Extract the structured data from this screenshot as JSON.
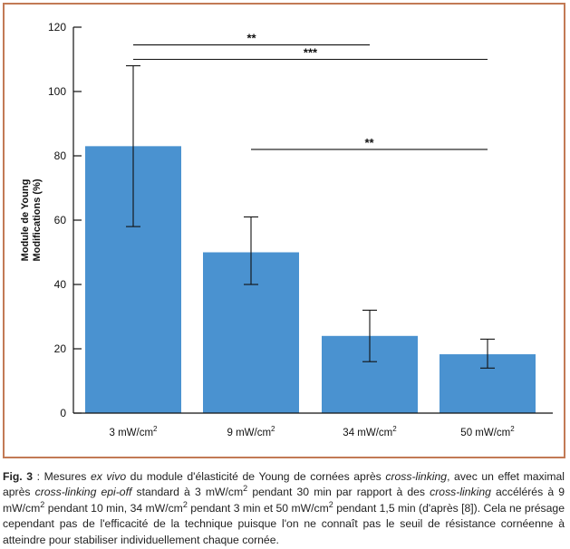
{
  "chart_data": {
    "type": "bar",
    "ylabel_lines": [
      "Module de Young",
      "Modifications (%)"
    ],
    "ylim": [
      0,
      120
    ],
    "yticks": [
      0,
      20,
      40,
      60,
      80,
      100,
      120
    ],
    "categories": [
      "3 mW/cm",
      "9 mW/cm",
      "34 mW/cm",
      "50 mW/cm"
    ],
    "category_superscript": "2",
    "values": [
      83,
      50,
      24,
      18.3
    ],
    "error_low": [
      58,
      40,
      16,
      14
    ],
    "error_high": [
      108,
      61,
      32,
      23
    ],
    "bar_color": "#4a92d0",
    "significance": [
      {
        "from": 0,
        "to": 2,
        "y": 114.5,
        "label": "**"
      },
      {
        "from": 0,
        "to": 3,
        "y": 110,
        "label": "***"
      },
      {
        "from": 1,
        "to": 3,
        "y": 82,
        "label": "**"
      }
    ]
  },
  "caption": [
    {
      "t": "Fig. 3",
      "s": "b"
    },
    {
      "t": " : Mesures ",
      "s": ""
    },
    {
      "t": "ex vivo",
      "s": "i"
    },
    {
      "t": " du module d'élasticité de Young de cornées après ",
      "s": ""
    },
    {
      "t": "cross-linking",
      "s": "i"
    },
    {
      "t": ", avec un effet maximal après ",
      "s": ""
    },
    {
      "t": "cross-linking epi-off",
      "s": "i"
    },
    {
      "t": " standard à 3 mW/cm",
      "s": ""
    },
    {
      "t": "2",
      "s": "sup"
    },
    {
      "t": " pendant 30 min par rapport à des ",
      "s": ""
    },
    {
      "t": "cross-linking",
      "s": "i"
    },
    {
      "t": " accélérés à 9 mW/cm",
      "s": ""
    },
    {
      "t": "2",
      "s": "sup"
    },
    {
      "t": " pendant 10 min, 34 mW/cm",
      "s": ""
    },
    {
      "t": "2",
      "s": "sup"
    },
    {
      "t": " pendant 3 min et 50 mW/cm",
      "s": ""
    },
    {
      "t": "2",
      "s": "sup"
    },
    {
      "t": " pendant 1,5 min (d'après [8]). Cela ne présage cependant pas de l'efficacité de la technique puisque l'on ne connaît pas le seuil de résistance cornéenne à atteindre pour stabiliser individuellement chaque cornée.",
      "s": ""
    }
  ]
}
